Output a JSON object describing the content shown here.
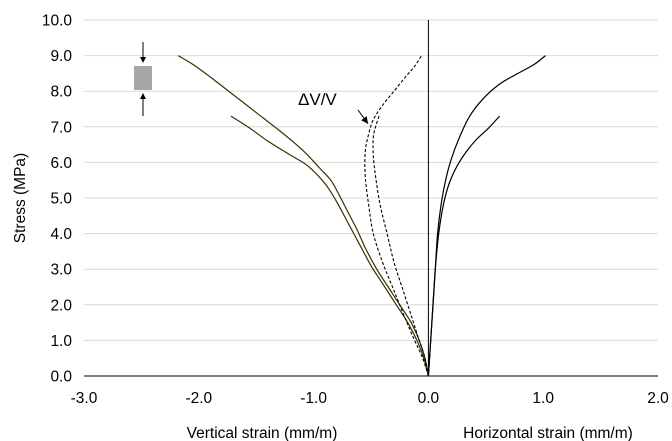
{
  "chart_data": {
    "type": "line",
    "title": "",
    "ylabel": "Stress (MPa)",
    "xlabel_left": "Vertical strain (mm/m)",
    "xlabel_right": "Horizontal strain (mm/m)",
    "xlim": [
      -3.0,
      2.0
    ],
    "ylim": [
      0.0,
      10.0
    ],
    "x_ticks": [
      -3.0,
      -2.0,
      -1.0,
      0.0,
      1.0,
      2.0
    ],
    "x_tick_labels": [
      "-3.0",
      "-2.0",
      "-1.0",
      "0.0",
      "1.0",
      "2.0"
    ],
    "y_ticks": [
      0.0,
      1.0,
      2.0,
      3.0,
      4.0,
      5.0,
      6.0,
      7.0,
      8.0,
      9.0,
      10.0
    ],
    "y_tick_labels": [
      "0.0",
      "1.0",
      "2.0",
      "3.0",
      "4.0",
      "5.0",
      "6.0",
      "7.0",
      "8.0",
      "9.0",
      "10.0"
    ],
    "grid": "horizontal",
    "legend": "none",
    "annotation": "ΔV/V",
    "annotation_arrow_target": {
      "x": -0.5,
      "y": 7.0
    },
    "inset_icon": "specimen-compression-icon",
    "colors": {
      "vertical_series": "#3a3000",
      "horizontal_series": "#000000",
      "volumetric_series": "#000000",
      "specimen_fill": "#a6a6a6",
      "grid": "#d9d9d9"
    },
    "series": [
      {
        "style": "solid",
        "color": "#3a3000",
        "x": [
          0.0,
          -0.03,
          -0.08,
          -0.15,
          -0.25,
          -0.35,
          -0.45,
          -0.55,
          -0.62,
          -0.7,
          -0.78,
          -0.85,
          -0.95,
          -1.05,
          -1.15,
          -1.3,
          -1.5,
          -1.7,
          -1.9,
          -2.05,
          -2.18
        ],
        "y": [
          0.0,
          0.5,
          1.0,
          1.5,
          2.0,
          2.5,
          3.0,
          3.6,
          4.1,
          4.6,
          5.1,
          5.5,
          5.85,
          6.2,
          6.5,
          6.9,
          7.4,
          7.9,
          8.4,
          8.75,
          9.0
        ]
      },
      {
        "style": "solid",
        "color": "#3a3000",
        "x": [
          0.0,
          -0.04,
          -0.1,
          -0.18,
          -0.28,
          -0.4,
          -0.5,
          -0.6,
          -0.7,
          -0.8,
          -0.9,
          -1.05,
          -1.2,
          -1.4,
          -1.55,
          -1.72
        ],
        "y": [
          0.0,
          0.5,
          1.0,
          1.5,
          2.0,
          2.6,
          3.1,
          3.7,
          4.3,
          4.9,
          5.4,
          5.9,
          6.2,
          6.6,
          6.95,
          7.3
        ]
      },
      {
        "style": "solid",
        "color": "#000000",
        "x": [
          0.0,
          0.02,
          0.04,
          0.06,
          0.08,
          0.11,
          0.15,
          0.2,
          0.27,
          0.36,
          0.48,
          0.62,
          0.78,
          0.92,
          1.02
        ],
        "y": [
          0.0,
          1.0,
          2.0,
          3.0,
          4.0,
          4.8,
          5.5,
          6.1,
          6.7,
          7.3,
          7.8,
          8.2,
          8.5,
          8.75,
          9.0
        ]
      },
      {
        "style": "solid",
        "color": "#000000",
        "x": [
          0.0,
          0.02,
          0.04,
          0.06,
          0.09,
          0.13,
          0.18,
          0.25,
          0.33,
          0.42,
          0.52,
          0.62
        ],
        "y": [
          0.0,
          1.0,
          2.0,
          3.0,
          4.0,
          4.8,
          5.4,
          5.9,
          6.3,
          6.65,
          6.95,
          7.3
        ]
      },
      {
        "style": "dashed",
        "color": "#000000",
        "x": [
          0.0,
          -0.05,
          -0.12,
          -0.2,
          -0.3,
          -0.4,
          -0.48,
          -0.52,
          -0.55,
          -0.55,
          -0.52,
          -0.48,
          -0.4,
          -0.3,
          -0.2,
          -0.12,
          -0.06
        ],
        "y": [
          0.0,
          0.5,
          1.0,
          1.6,
          2.4,
          3.2,
          4.0,
          4.8,
          5.6,
          6.3,
          6.8,
          7.2,
          7.6,
          8.0,
          8.4,
          8.7,
          9.0
        ]
      },
      {
        "style": "dashed",
        "color": "#000000",
        "x": [
          0.0,
          -0.03,
          -0.08,
          -0.14,
          -0.22,
          -0.3,
          -0.36,
          -0.42,
          -0.46,
          -0.48,
          -0.48,
          -0.46,
          -0.43
        ],
        "y": [
          0.0,
          0.5,
          1.0,
          1.6,
          2.4,
          3.2,
          4.0,
          4.8,
          5.6,
          6.2,
          6.7,
          7.0,
          7.3
        ]
      }
    ]
  }
}
